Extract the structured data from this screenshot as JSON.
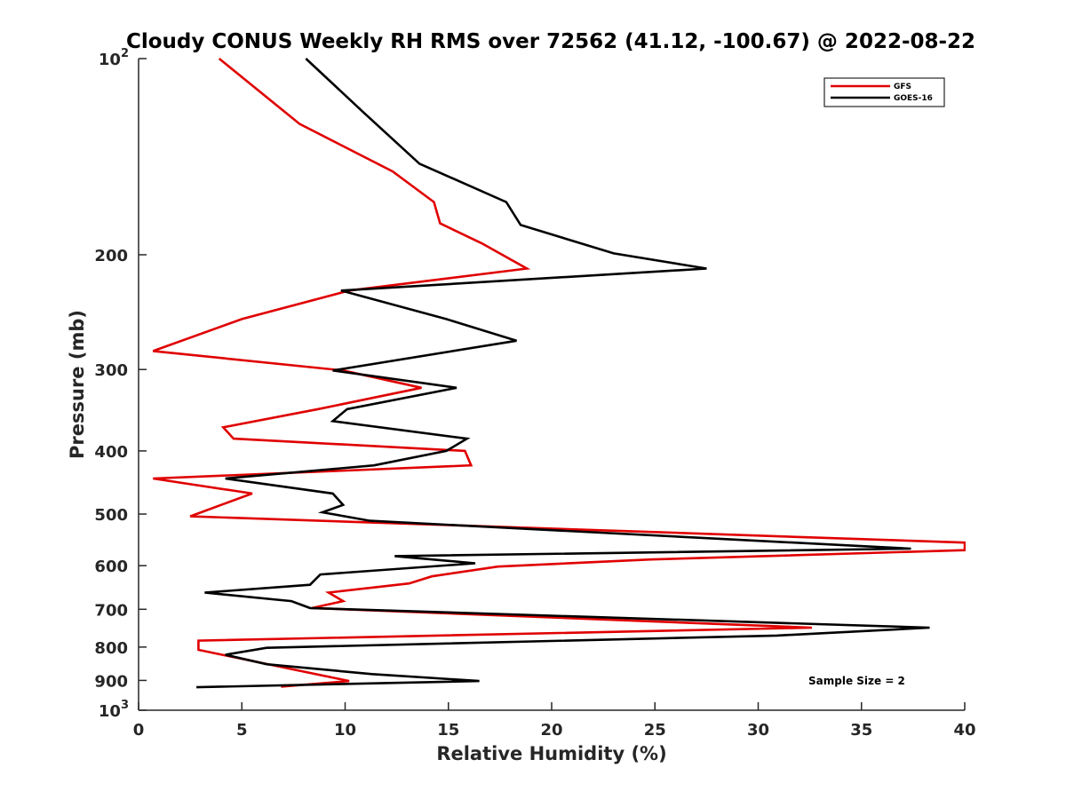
{
  "chart_data": {
    "type": "line",
    "title": "Cloudy CONUS Weekly RH RMS over 72562 (41.12, -100.67) @ 2022-08-22",
    "xlabel": "Relative Humidity (%)",
    "ylabel": "Pressure (mb)",
    "xlim": [
      0,
      40
    ],
    "ylim": [
      100,
      1000
    ],
    "y_scale": "log",
    "y_reversed": true,
    "grid": false,
    "legend_position": "top-right",
    "x_ticks": [
      "0",
      "5",
      "10",
      "15",
      "20",
      "25",
      "30",
      "35",
      "40"
    ],
    "y_ticks": [
      {
        "value": 100,
        "base": "10",
        "exp": "2"
      },
      {
        "value": 200,
        "label": "200"
      },
      {
        "value": 300,
        "label": "300"
      },
      {
        "value": 400,
        "label": "400"
      },
      {
        "value": 500,
        "label": "500"
      },
      {
        "value": 600,
        "label": "600"
      },
      {
        "value": 700,
        "label": "700"
      },
      {
        "value": 800,
        "label": "800"
      },
      {
        "value": 900,
        "label": "900"
      },
      {
        "value": 1000,
        "base": "10",
        "exp": "3"
      }
    ],
    "annotation": "Sample Size = 2",
    "series": [
      {
        "name": "GFS",
        "color": "#e00000",
        "points": [
          [
            3.9,
            100
          ],
          [
            7.8,
            126
          ],
          [
            12.3,
            149
          ],
          [
            14.3,
            166
          ],
          [
            14.6,
            179
          ],
          [
            16.6,
            192
          ],
          [
            18.8,
            210
          ],
          [
            10.2,
            227
          ],
          [
            5.0,
            251
          ],
          [
            0.7,
            281
          ],
          [
            9.9,
            301
          ],
          [
            13.7,
            320
          ],
          [
            8.7,
            345
          ],
          [
            4.1,
            368
          ],
          [
            4.6,
            383
          ],
          [
            15.8,
            400
          ],
          [
            16.1,
            421
          ],
          [
            0.7,
            441
          ],
          [
            5.5,
            465
          ],
          [
            2.5,
            504
          ],
          [
            40.0,
            553
          ],
          [
            40.0,
            568
          ],
          [
            24.8,
            587
          ],
          [
            17.4,
            602
          ],
          [
            14.2,
            623
          ],
          [
            13.1,
            639
          ],
          [
            9.2,
            660
          ],
          [
            9.9,
            680
          ],
          [
            8.4,
            697
          ],
          [
            32.6,
            747
          ],
          [
            2.9,
            782
          ],
          [
            2.9,
            808
          ],
          [
            10.2,
            902
          ],
          [
            6.9,
            920
          ]
        ]
      },
      {
        "name": "GOES-16",
        "color": "#000000",
        "points": [
          [
            8.1,
            100
          ],
          [
            10.9,
            121
          ],
          [
            13.6,
            145
          ],
          [
            17.8,
            166
          ],
          [
            18.5,
            180
          ],
          [
            23.0,
            199
          ],
          [
            27.5,
            210
          ],
          [
            9.8,
            227
          ],
          [
            14.9,
            251
          ],
          [
            18.3,
            271
          ],
          [
            9.4,
            301
          ],
          [
            15.4,
            320
          ],
          [
            10.1,
            345
          ],
          [
            9.4,
            360
          ],
          [
            15.9,
            383
          ],
          [
            14.9,
            400
          ],
          [
            11.4,
            421
          ],
          [
            4.2,
            441
          ],
          [
            9.4,
            465
          ],
          [
            9.9,
            484
          ],
          [
            8.9,
            497
          ],
          [
            11.2,
            512
          ],
          [
            37.4,
            565
          ],
          [
            12.4,
            580
          ],
          [
            16.3,
            595
          ],
          [
            8.8,
            619
          ],
          [
            8.3,
            642
          ],
          [
            3.2,
            660
          ],
          [
            7.4,
            680
          ],
          [
            8.3,
            697
          ],
          [
            38.3,
            747
          ],
          [
            30.9,
            768
          ],
          [
            6.2,
            802
          ],
          [
            4.2,
            822
          ],
          [
            6.2,
            850
          ],
          [
            11.3,
            880
          ],
          [
            16.5,
            902
          ],
          [
            2.8,
            922
          ]
        ]
      }
    ]
  }
}
